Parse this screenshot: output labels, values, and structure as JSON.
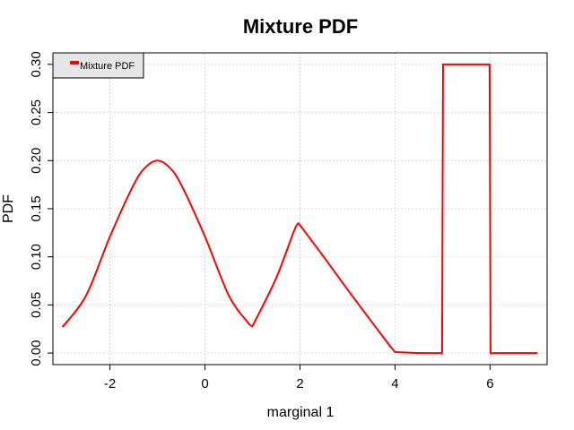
{
  "chart_data": {
    "type": "line",
    "title": "Mixture PDF",
    "xlabel": "marginal 1",
    "ylabel": "PDF",
    "xlim": [
      -3.2,
      7.2
    ],
    "ylim": [
      -0.012,
      0.312
    ],
    "x_ticks": [
      -2,
      0,
      2,
      4,
      6
    ],
    "x_tick_labels": [
      "-2",
      "0",
      "2",
      "4",
      "6"
    ],
    "y_ticks": [
      0.0,
      0.05,
      0.1,
      0.15,
      0.2,
      0.25,
      0.3
    ],
    "y_tick_labels": [
      "0.00",
      "0.05",
      "0.10",
      "0.15",
      "0.20",
      "0.25",
      "0.30"
    ],
    "grid": true,
    "legend": {
      "placement": "top-left",
      "entries": [
        "Mixture PDF"
      ]
    },
    "colors": {
      "series": "#ff0000",
      "grid": "#dddddd",
      "legend_bg": "#e6e6e6"
    },
    "series": [
      {
        "name": "Mixture PDF",
        "x": [
          -3.0,
          -2.5,
          -2.0,
          -1.5,
          -1.25,
          -1.0,
          -0.75,
          -0.5,
          0.0,
          0.5,
          0.9,
          1.0,
          1.5,
          1.9,
          2.0,
          2.5,
          3.0,
          3.5,
          3.9,
          4.0,
          4.5,
          4.99,
          5.01,
          5.5,
          5.99,
          6.01,
          6.5,
          7.0
        ],
        "y": [
          0.027,
          0.06,
          0.121,
          0.175,
          0.193,
          0.2,
          0.193,
          0.175,
          0.121,
          0.06,
          0.032,
          0.028,
          0.078,
          0.13,
          0.133,
          0.1,
          0.066,
          0.033,
          0.007,
          0.001,
          0.0,
          0.0,
          0.3,
          0.3,
          0.3,
          0.0,
          0.0,
          0.0
        ]
      }
    ]
  }
}
